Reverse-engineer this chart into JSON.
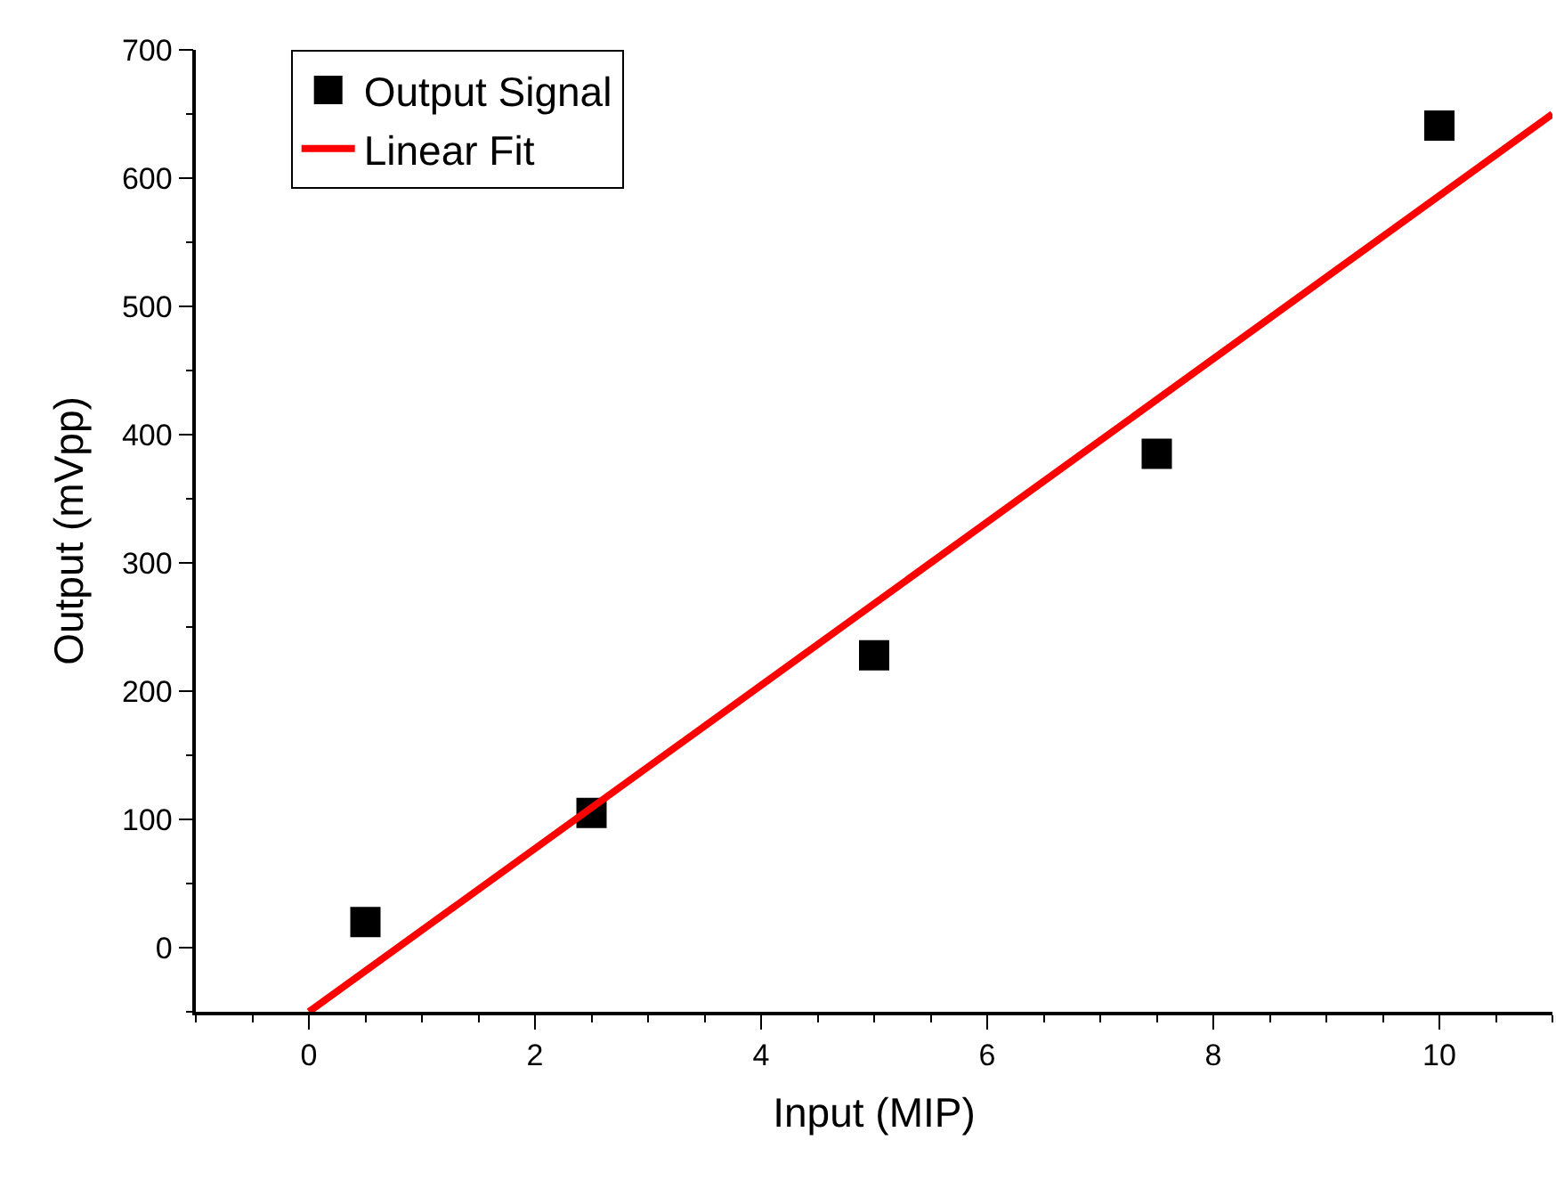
{
  "chart_data": {
    "type": "scatter",
    "xlabel": "Input (MIP)",
    "ylabel": "Output (mVpp)",
    "xlim": [
      -1,
      11
    ],
    "xticks": [
      0,
      2,
      4,
      6,
      8,
      10
    ],
    "ylim": [
      -50,
      700
    ],
    "yticks": [
      0,
      100,
      200,
      300,
      400,
      500,
      600,
      700
    ],
    "legend": "top left",
    "series": [
      {
        "name": "Output Signal",
        "marker": "square",
        "color": "#000000",
        "x": [
          0.5,
          2.5,
          5,
          7.5,
          10
        ],
        "values": [
          20,
          105,
          228,
          385,
          641
        ]
      },
      {
        "name": "Linear Fit",
        "type": "line",
        "marker": "none",
        "color": "#ff0000",
        "x": [
          0,
          11
        ],
        "values": [
          -50,
          650
        ]
      }
    ]
  }
}
